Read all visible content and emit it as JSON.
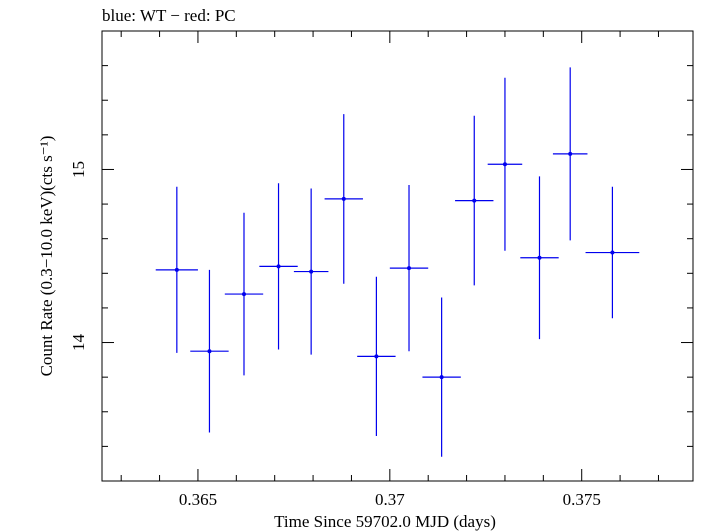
{
  "chart_data": {
    "type": "scatter",
    "title": "blue: WT − red: PC",
    "xlabel": "Time Since 59702.0 MJD (days)",
    "ylabel": "Count Rate (0.3−10.0 keV)(cts s⁻¹)",
    "xlim": [
      0.3625,
      0.3779
    ],
    "ylim": [
      13.2,
      15.8
    ],
    "x_ticks": [
      0.365,
      0.37,
      0.375
    ],
    "x_tick_labels": [
      "0.365",
      "0.37",
      "0.375"
    ],
    "y_ticks": [
      14,
      15
    ],
    "y_tick_labels": [
      "14",
      "15"
    ],
    "grid": false,
    "legend": "none",
    "series": [
      {
        "color": "#0000ee",
        "points": [
          {
            "x": 0.36445,
            "xerr": 0.00055,
            "y": 14.42,
            "yerr": 0.48
          },
          {
            "x": 0.3653,
            "xerr": 0.0005,
            "y": 13.95,
            "yerr": 0.47
          },
          {
            "x": 0.3662,
            "xerr": 0.0005,
            "y": 14.28,
            "yerr": 0.47
          },
          {
            "x": 0.3671,
            "xerr": 0.0005,
            "y": 14.44,
            "yerr": 0.48
          },
          {
            "x": 0.36795,
            "xerr": 0.00045,
            "y": 14.41,
            "yerr": 0.48
          },
          {
            "x": 0.3688,
            "xerr": 0.0005,
            "y": 14.83,
            "yerr": 0.49
          },
          {
            "x": 0.36965,
            "xerr": 0.0005,
            "y": 13.92,
            "yerr": 0.46
          },
          {
            "x": 0.3705,
            "xerr": 0.0005,
            "y": 14.43,
            "yerr": 0.48
          },
          {
            "x": 0.37135,
            "xerr": 0.0005,
            "y": 13.8,
            "yerr": 0.46
          },
          {
            "x": 0.3722,
            "xerr": 0.0005,
            "y": 14.82,
            "yerr": 0.49
          },
          {
            "x": 0.373,
            "xerr": 0.00045,
            "y": 15.03,
            "yerr": 0.5
          },
          {
            "x": 0.3739,
            "xerr": 0.0005,
            "y": 14.49,
            "yerr": 0.47
          },
          {
            "x": 0.3747,
            "xerr": 0.00045,
            "y": 15.09,
            "yerr": 0.5
          },
          {
            "x": 0.3758,
            "xerr": 0.0007,
            "y": 14.52,
            "yerr": 0.38
          }
        ]
      }
    ]
  }
}
